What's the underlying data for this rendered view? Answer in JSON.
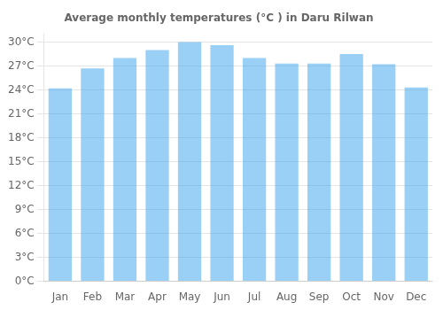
{
  "chart_data": {
    "type": "bar",
    "title": "Average monthly temperatures (°C ) in Daru Rilwan",
    "categories": [
      "Jan",
      "Feb",
      "Mar",
      "Apr",
      "May",
      "Jun",
      "Jul",
      "Aug",
      "Sep",
      "Oct",
      "Nov",
      "Dec"
    ],
    "values": [
      24.2,
      26.7,
      28.0,
      29.0,
      30.0,
      29.6,
      28.0,
      27.3,
      27.3,
      28.5,
      27.2,
      24.3
    ],
    "ylim": [
      0,
      31
    ],
    "yticks": [
      {
        "value": 0,
        "label": "0°C"
      },
      {
        "value": 3,
        "label": "3°C"
      },
      {
        "value": 6,
        "label": "6°C"
      },
      {
        "value": 9,
        "label": "9°C"
      },
      {
        "value": 12,
        "label": "12°C"
      },
      {
        "value": 15,
        "label": "15°C"
      },
      {
        "value": 18,
        "label": "18°C"
      },
      {
        "value": 21,
        "label": "21°C"
      },
      {
        "value": 24,
        "label": "24°C"
      },
      {
        "value": 27,
        "label": "27°C"
      },
      {
        "value": 30,
        "label": "30°C"
      }
    ],
    "grid": true
  }
}
